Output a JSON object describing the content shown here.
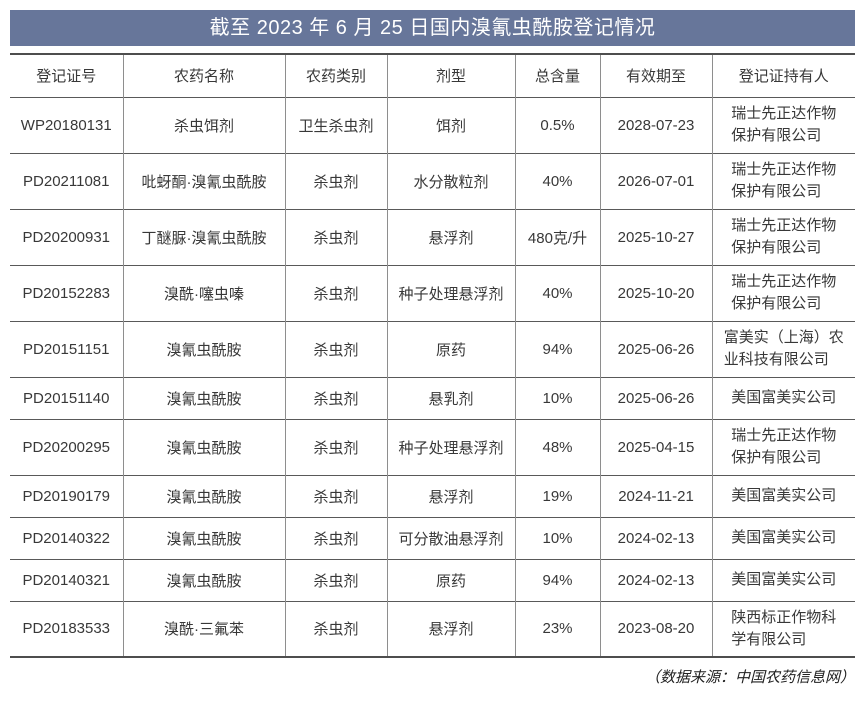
{
  "title": "截至 2023 年 6 月 25 日国内溴氰虫酰胺登记情况",
  "table": {
    "columns": [
      "登记证号",
      "农药名称",
      "农药类别",
      "剂型",
      "总含量",
      "有效期至",
      "登记证持有人"
    ],
    "rows": [
      {
        "reg_no": "WP20180131",
        "name": "杀虫饵剂",
        "category": "卫生杀虫剂",
        "formulation": "饵剂",
        "content": "0.5%",
        "valid_until": "2028-07-23",
        "holder": "瑞士先正达作物\n保护有限公司"
      },
      {
        "reg_no": "PD20211081",
        "name": "吡蚜酮·溴氰虫酰胺",
        "category": "杀虫剂",
        "formulation": "水分散粒剂",
        "content": "40%",
        "valid_until": "2026-07-01",
        "holder": "瑞士先正达作物\n保护有限公司"
      },
      {
        "reg_no": "PD20200931",
        "name": "丁醚脲·溴氰虫酰胺",
        "category": "杀虫剂",
        "formulation": "悬浮剂",
        "content": "480克/升",
        "valid_until": "2025-10-27",
        "holder": "瑞士先正达作物\n保护有限公司"
      },
      {
        "reg_no": "PD20152283",
        "name": "溴酰·噻虫嗪",
        "category": "杀虫剂",
        "formulation": "种子处理悬浮剂",
        "content": "40%",
        "valid_until": "2025-10-20",
        "holder": "瑞士先正达作物\n保护有限公司"
      },
      {
        "reg_no": "PD20151151",
        "name": "溴氰虫酰胺",
        "category": "杀虫剂",
        "formulation": "原药",
        "content": "94%",
        "valid_until": "2025-06-26",
        "holder": "富美实（上海）农\n业科技有限公司"
      },
      {
        "reg_no": "PD20151140",
        "name": "溴氰虫酰胺",
        "category": "杀虫剂",
        "formulation": "悬乳剂",
        "content": "10%",
        "valid_until": "2025-06-26",
        "holder": "美国富美实公司"
      },
      {
        "reg_no": "PD20200295",
        "name": "溴氰虫酰胺",
        "category": "杀虫剂",
        "formulation": "种子处理悬浮剂",
        "content": "48%",
        "valid_until": "2025-04-15",
        "holder": "瑞士先正达作物\n保护有限公司"
      },
      {
        "reg_no": "PD20190179",
        "name": "溴氰虫酰胺",
        "category": "杀虫剂",
        "formulation": "悬浮剂",
        "content": "19%",
        "valid_until": "2024-11-21",
        "holder": "美国富美实公司"
      },
      {
        "reg_no": "PD20140322",
        "name": "溴氰虫酰胺",
        "category": "杀虫剂",
        "formulation": "可分散油悬浮剂",
        "content": "10%",
        "valid_until": "2024-02-13",
        "holder": "美国富美实公司"
      },
      {
        "reg_no": "PD20140321",
        "name": "溴氰虫酰胺",
        "category": "杀虫剂",
        "formulation": "原药",
        "content": "94%",
        "valid_until": "2024-02-13",
        "holder": "美国富美实公司"
      },
      {
        "reg_no": "PD20183533",
        "name": "溴酰·三氟苯",
        "category": "杀虫剂",
        "formulation": "悬浮剂",
        "content": "23%",
        "valid_until": "2023-08-20",
        "holder": "陕西标正作物科\n学有限公司"
      }
    ]
  },
  "footer": {
    "source_note": "（数据来源：中国农药信息网）"
  },
  "colors": {
    "title_bar_bg": "#67769a",
    "title_text": "#ffffff",
    "border_outer": "#4e4e4e",
    "border_horizontal": "#595959",
    "border_vertical": "#8e8e8e",
    "body_text": "#383838"
  }
}
